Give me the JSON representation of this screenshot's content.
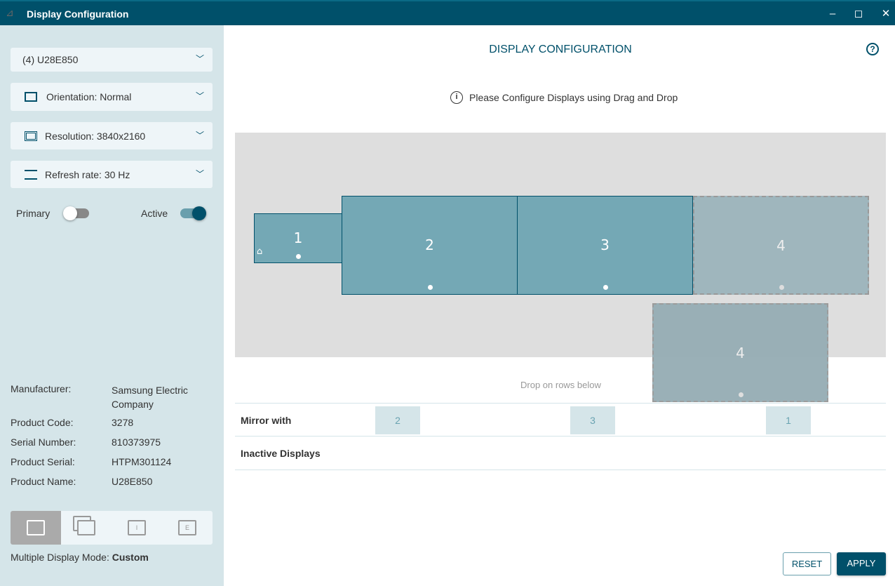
{
  "window": {
    "title": "Display Configuration",
    "minimize": "–",
    "maximize": "◻",
    "close": "✕"
  },
  "sidebar": {
    "display_select": "(4) U28E850",
    "orientation": "Orientation: Normal",
    "resolution": "Resolution: 3840x2160",
    "refresh_rate": "Refresh rate: 30 Hz",
    "primary_label": "Primary",
    "primary_on": false,
    "active_label": "Active",
    "active_on": true,
    "info": [
      {
        "label": "Manufacturer:",
        "value": "Samsung Electric Company"
      },
      {
        "label": "Product Code:",
        "value": "3278"
      },
      {
        "label": "Serial Number:",
        "value": "810373975"
      },
      {
        "label": "Product Serial:",
        "value": "HTPM301124"
      },
      {
        "label": "Product Name:",
        "value": "U28E850"
      }
    ],
    "mode_label": "Multiple Display Mode:",
    "mode_value": "Custom",
    "mode_buttons": [
      {
        "icon": "custom-icon",
        "selected": true
      },
      {
        "icon": "clone-icon"
      },
      {
        "icon": "internal-only-icon",
        "text": "I"
      },
      {
        "icon": "external-only-icon",
        "text": "E"
      }
    ]
  },
  "main": {
    "title": "DISPLAY CONFIGURATION",
    "hint": "Please Configure Displays using Drag and Drop",
    "monitors": [
      {
        "label": "1",
        "home": true
      },
      {
        "label": "2"
      },
      {
        "label": "3"
      },
      {
        "label": "4"
      }
    ],
    "dragging": "4",
    "drop_hint": "Drop on rows below",
    "mirror_label": "Mirror with",
    "mirror_chips": [
      "2",
      "3",
      "1"
    ],
    "inactive_label": "Inactive Displays",
    "reset": "RESET",
    "apply": "APPLY"
  },
  "colors": {
    "brand": "#00506a",
    "monitor": "#74a8b5",
    "sidebar": "#d5e5e9"
  }
}
